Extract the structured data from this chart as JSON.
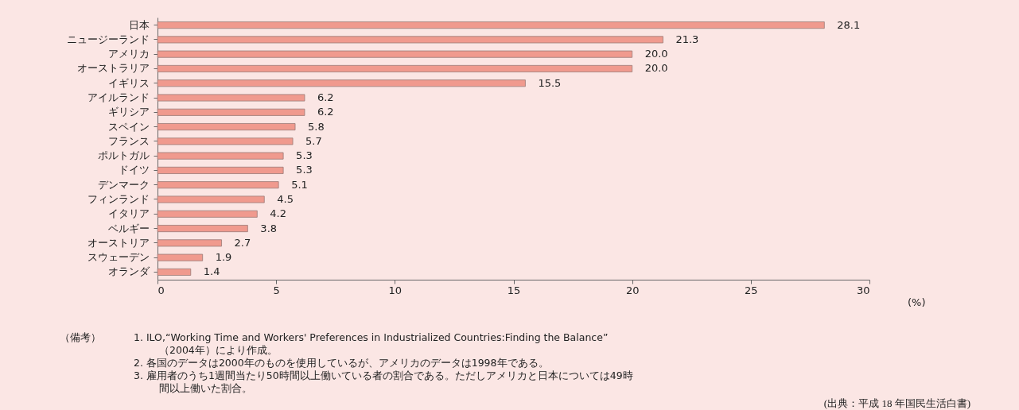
{
  "chart_data": {
    "type": "bar",
    "orientation": "horizontal",
    "categories": [
      "日本",
      "ニュージーランド",
      "アメリカ",
      "オーストラリア",
      "イギリス",
      "アイルランド",
      "ギリシア",
      "スペイン",
      "フランス",
      "ポルトガル",
      "ドイツ",
      "デンマーク",
      "フィンランド",
      "イタリア",
      "ベルギー",
      "オーストリア",
      "スウェーデン",
      "オランダ"
    ],
    "values": [
      28.1,
      21.3,
      20.0,
      20.0,
      15.5,
      6.2,
      6.2,
      5.8,
      5.7,
      5.3,
      5.3,
      5.1,
      4.5,
      4.2,
      3.8,
      2.7,
      1.9,
      1.4
    ],
    "color": "#f09a8e",
    "xlim": [
      0,
      30
    ],
    "xticks": [
      0,
      5,
      10,
      15,
      20,
      25,
      30
    ],
    "xlabel": "(%)",
    "value_labels": [
      "28.1",
      "21.3",
      "20.0",
      "20.0",
      "15.5",
      "6.2",
      "6.2",
      "5.8",
      "5.7",
      "5.3",
      "5.3",
      "5.1",
      "4.5",
      "4.2",
      "3.8",
      "2.7",
      "1.9",
      "1.4"
    ],
    "grid": false,
    "annotations": [
      "（備考）",
      "1. ILO,“Working Time and Workers' Preferences in Industrialized Countries:Finding the Balance”",
      "（2004年）により作成。",
      "2. 各国のデータは2000年のものを使用しているが、アメリカのデータは1998年である。",
      "3. 雇用者のうち1週間当たり50時間以上働いている者の割合である。ただしアメリカと日本については49時",
      "間以上働いた割合。",
      "(出典：平成 18 年国民生活白書)"
    ]
  }
}
